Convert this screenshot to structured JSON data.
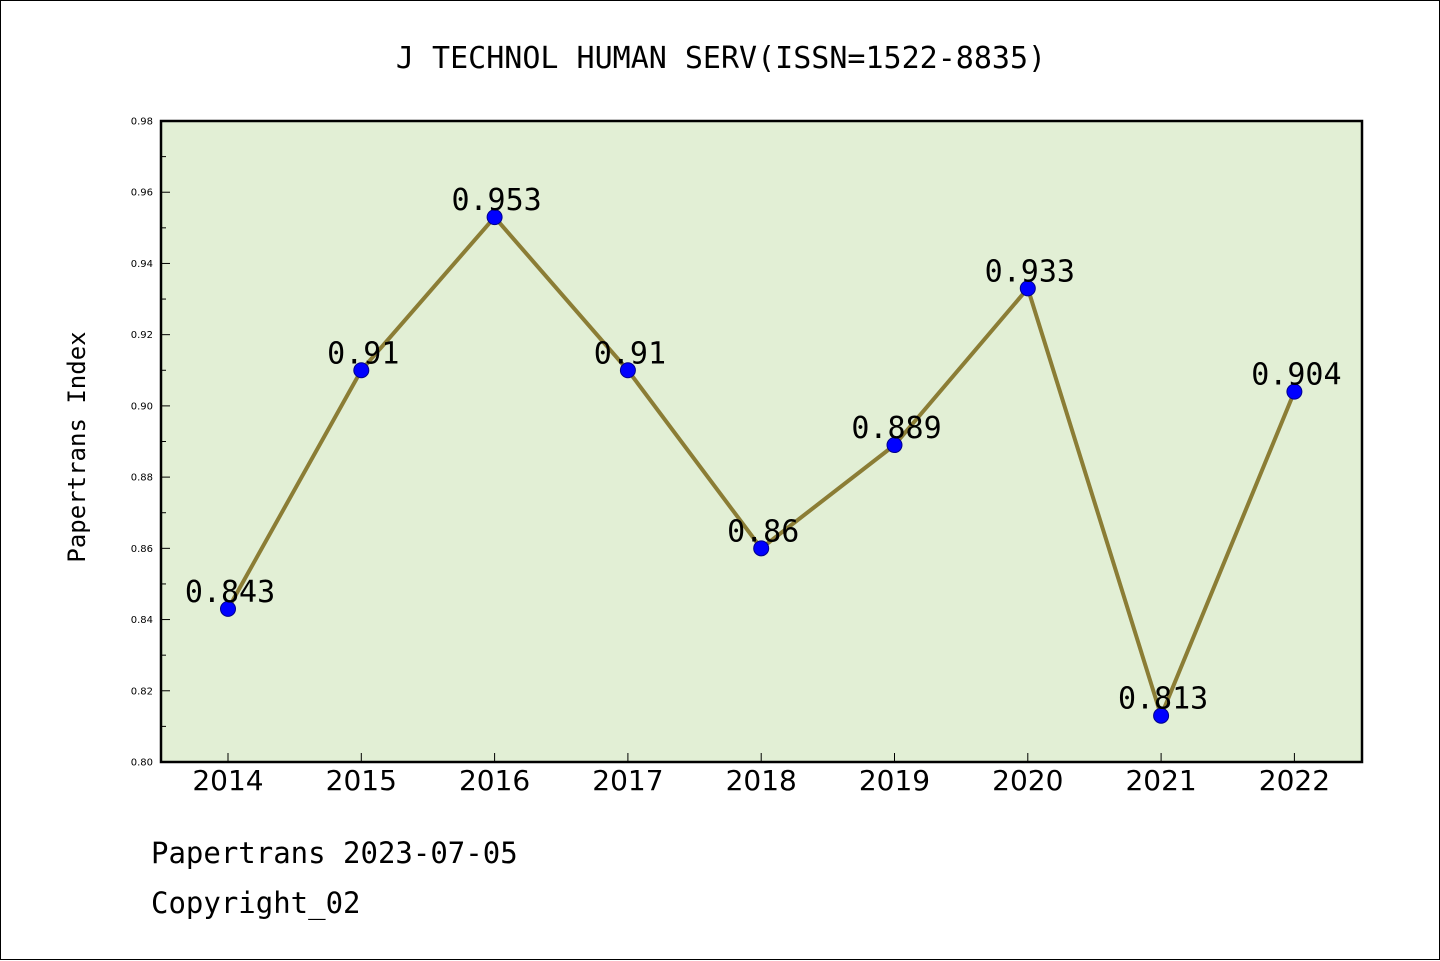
{
  "chart_data": {
    "type": "line",
    "title": "J TECHNOL HUMAN SERV(ISSN=1522-8835)",
    "xlabel": "",
    "ylabel": "Papertrans Index",
    "x": [
      "2014",
      "2015",
      "2016",
      "2017",
      "2018",
      "2019",
      "2020",
      "2021",
      "2022"
    ],
    "series": [
      {
        "values": [
          0.843,
          0.91,
          0.953,
          0.91,
          0.86,
          0.889,
          0.933,
          0.813,
          0.904
        ],
        "labels": [
          "0.843",
          "0.91",
          "0.953",
          "0.91",
          "0.86",
          "0.889",
          "0.933",
          "0.813",
          "0.904"
        ]
      }
    ],
    "ylim": [
      0.8,
      0.98
    ],
    "yticks": [
      "0.80",
      "0.82",
      "0.84",
      "0.86",
      "0.88",
      "0.90",
      "0.92",
      "0.94",
      "0.96",
      "0.98"
    ],
    "grid": false,
    "colors": {
      "plot_background": "#e2efd5",
      "line": "#8b7d35",
      "marker": "#0000ff"
    }
  },
  "footer": {
    "line1": "Papertrans 2023-07-05",
    "line2": "Copyright_02"
  }
}
